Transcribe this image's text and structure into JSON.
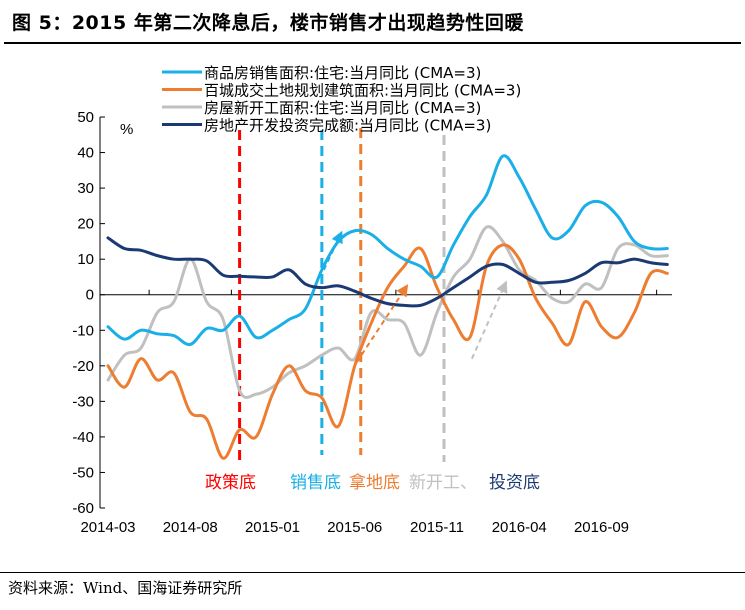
{
  "title": "图 5：2015 年第二次降息后，楼市销售才出现趋势性回暖",
  "source": "资料来源：Wind、国海证券研究所",
  "chart_data": {
    "type": "line",
    "title": "图 5：2015 年第二次降息后，楼市销售才出现趋势性回暖",
    "ylabel": "%",
    "xlabel": "",
    "ylim": [
      -60,
      50
    ],
    "yticks": [
      50,
      40,
      30,
      20,
      10,
      0,
      -10,
      -20,
      -30,
      -40,
      -50,
      -60
    ],
    "x": [
      "2014-03",
      "2014-04",
      "2014-05",
      "2014-06",
      "2014-07",
      "2014-08",
      "2014-09",
      "2014-10",
      "2014-11",
      "2014-12",
      "2015-01",
      "2015-02",
      "2015-03",
      "2015-04",
      "2015-05",
      "2015-06",
      "2015-07",
      "2015-08",
      "2015-09",
      "2015-10",
      "2015-11",
      "2015-12",
      "2016-01",
      "2016-02",
      "2016-03",
      "2016-04",
      "2016-05",
      "2016-06",
      "2016-07",
      "2016-08",
      "2016-09",
      "2016-10",
      "2016-11",
      "2016-12",
      "2017-01"
    ],
    "xtick_labels": [
      "2014-03",
      "2014-08",
      "2015-01",
      "2015-06",
      "2015-11",
      "2016-04",
      "2016-09"
    ],
    "grid": false,
    "legend": "top-center",
    "series": [
      {
        "name": "商品房销售面积:住宅:当月同比（CMA=3）",
        "color": "#1AAFE6",
        "values": [
          -9,
          -12.5,
          -10,
          -11,
          -11.5,
          -14,
          -9.5,
          -10,
          -6,
          -12,
          -10,
          -7,
          -4,
          7,
          15,
          18,
          17,
          13,
          10,
          8,
          5,
          14,
          22,
          28,
          39,
          33,
          24,
          16,
          18,
          25,
          26,
          22,
          15,
          13,
          13
        ]
      },
      {
        "name": "百城成交土地规划建筑面积:当月同比（CMA=3）",
        "color": "#ED7D31",
        "values": [
          -20,
          -26,
          -18,
          -24,
          -22,
          -33,
          -35,
          -46,
          -38,
          -40,
          -28,
          -20,
          -27,
          -29,
          -37,
          -20,
          -8,
          2,
          8,
          13,
          2,
          -7,
          -12,
          8,
          14,
          10,
          -1,
          -8,
          -14,
          -2,
          -9,
          -12,
          -5,
          6,
          6
        ]
      },
      {
        "name": "房屋新开工面积:住宅:当月同比（CMA=3）",
        "color": "#C0C0C0",
        "values": [
          -24,
          -17,
          -15,
          -5,
          -2,
          10,
          -2,
          -7,
          -27,
          -28,
          -26,
          -22,
          -20,
          -17,
          -15,
          -18,
          -5,
          -7,
          -8,
          -17,
          -5,
          5,
          10,
          19,
          15,
          7,
          4,
          -1,
          -2,
          3,
          2,
          13,
          14,
          11,
          11
        ]
      },
      {
        "name": "房地产开发投资完成额:当月同比（CMA=3）",
        "color": "#1B3A73",
        "values": [
          16,
          13,
          12.5,
          11,
          10,
          10,
          9.5,
          5.5,
          5.2,
          5,
          5,
          7,
          3,
          2,
          2.5,
          1,
          -1,
          -2.5,
          -3,
          -3,
          -1,
          2,
          5,
          8,
          8.5,
          6,
          3.5,
          3.5,
          4,
          6,
          9,
          9,
          10,
          9,
          8.5
        ]
      }
    ],
    "vertical_markers": [
      {
        "x": "2014-11",
        "color": "#FF0000",
        "label": "政策底"
      },
      {
        "x": "2015-04",
        "color": "#1AAFE6",
        "label": "销售底"
      },
      {
        "x": "2015-06",
        "color": "#ED7D31",
        "label": "拿地底"
      },
      {
        "x": "2015-11",
        "color": "#C0C0C0",
        "label": "新开工、"
      },
      {
        "x": "2015-11",
        "color": "#1B3A73",
        "label": "投资底",
        "label_only": true
      }
    ],
    "trend_arrows": [
      {
        "color": "#1AAFE6",
        "from": [
          "2015-04",
          7
        ],
        "to": [
          "2015-05",
          18
        ]
      },
      {
        "color": "#ED7D31",
        "from": [
          "2015-06",
          -19
        ],
        "to": [
          "2015-09",
          3
        ]
      },
      {
        "color": "#C0C0C0",
        "from": [
          "2016-01",
          -18
        ],
        "to": [
          "2016-03",
          4
        ]
      }
    ]
  }
}
